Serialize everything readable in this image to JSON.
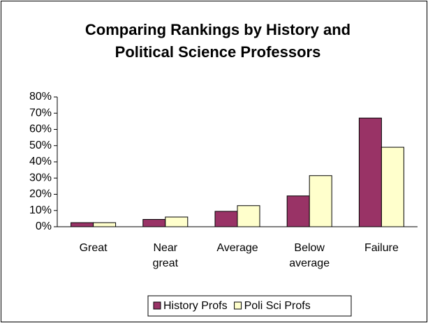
{
  "chart_data": {
    "type": "bar",
    "title": [
      "Comparing Rankings by History and",
      "Political Science Professors"
    ],
    "categories": [
      "Great",
      "Near great",
      "Average",
      "Below average",
      "Failure"
    ],
    "series": [
      {
        "name": "History Profs",
        "color": "#993366",
        "values": [
          2.5,
          4.5,
          9.5,
          19,
          67
        ]
      },
      {
        "name": "Poli Sci Profs",
        "color": "#ffffcc",
        "values": [
          2.5,
          6,
          13,
          31.5,
          49
        ]
      }
    ],
    "ylim": [
      0,
      80
    ],
    "yticks": [
      {
        "value": 0,
        "label": "0%"
      },
      {
        "value": 10,
        "label": "10%"
      },
      {
        "value": 20,
        "label": "20%"
      },
      {
        "value": 30,
        "label": "30%"
      },
      {
        "value": 40,
        "label": "40%"
      },
      {
        "value": 50,
        "label": "50%"
      },
      {
        "value": 60,
        "label": "60%"
      },
      {
        "value": 70,
        "label": "70%"
      },
      {
        "value": 80,
        "label": "80%"
      }
    ],
    "grid": false,
    "legend": "bottom"
  }
}
